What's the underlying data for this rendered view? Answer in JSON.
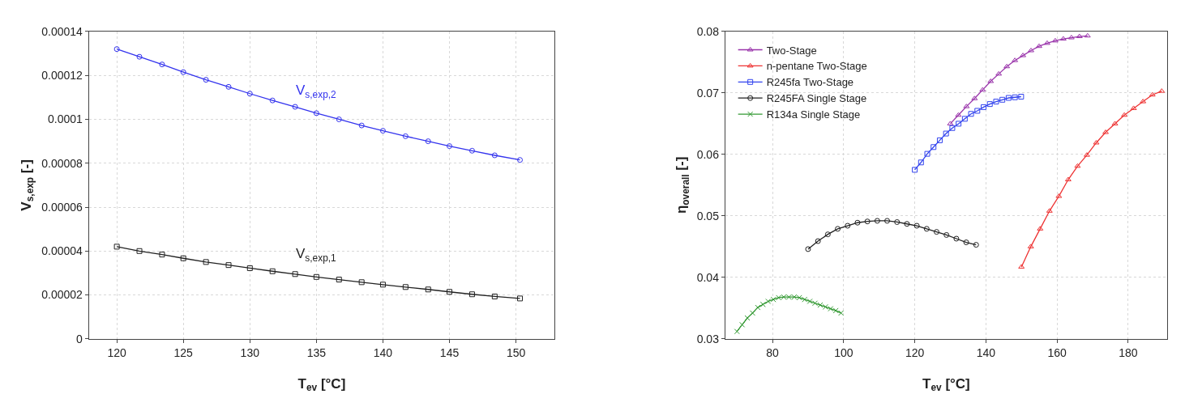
{
  "chart_data": [
    {
      "type": "line",
      "xlabel": "T$_{ev}$ [°C]",
      "ylabel": "V$_{s,exp}$ [-]",
      "xlim": [
        117.9,
        152.9
      ],
      "xticks": [
        120,
        125,
        130,
        135,
        140,
        145,
        150
      ],
      "ylim": [
        0,
        0.00014
      ],
      "yticks": [
        0,
        {
          "value": 2e-05,
          "label": "0.00002"
        },
        {
          "value": 4e-05,
          "label": "0.00004"
        },
        {
          "value": 6e-05,
          "label": "0.00006"
        },
        {
          "value": 8e-05,
          "label": "0.00008"
        },
        {
          "value": 0.0001,
          "label": "0.0001"
        },
        {
          "value": 0.00012,
          "label": "0.00012"
        },
        {
          "value": 0.00014,
          "label": "0.00014"
        }
      ],
      "grid": true,
      "legend": false,
      "x": [
        120,
        121.7,
        123.4,
        125,
        126.7,
        128.4,
        130,
        131.7,
        133.4,
        135,
        136.7,
        138.4,
        140,
        141.7,
        143.4,
        145,
        146.7,
        148.4,
        150.3
      ],
      "series": [
        {
          "name": "V$_{s,exp,2}$",
          "color": "#3333ee",
          "marker": "circle",
          "values": [
            0.000132,
            0.0001285,
            0.000125,
            0.0001215,
            0.000118,
            0.0001148,
            0.0001117,
            0.0001086,
            0.0001057,
            0.0001028,
            0.0001,
            9.72e-05,
            9.48e-05,
            9.23e-05,
            9e-05,
            8.78e-05,
            8.57e-05,
            8.36e-05,
            8.15e-05
          ]
        },
        {
          "name": "V$_{s,exp,1}$",
          "color": "#222222",
          "marker": "square",
          "values": [
            4.2e-05,
            4e-05,
            3.84e-05,
            3.67e-05,
            3.5e-05,
            3.36e-05,
            3.22e-05,
            3.08e-05,
            2.95e-05,
            2.82e-05,
            2.7e-05,
            2.58e-05,
            2.47e-05,
            2.36e-05,
            2.25e-05,
            2.14e-05,
            2.03e-05,
            1.93e-05,
            1.84e-05
          ]
        }
      ]
    },
    {
      "type": "line",
      "xlabel": "T$_{ev}$ [°C]",
      "ylabel": "η$_{overall}$ [-]",
      "xlim": [
        66.7,
        191
      ],
      "xticks": [
        80,
        100,
        120,
        140,
        160,
        180
      ],
      "ylim": [
        0.03,
        0.08
      ],
      "yticks": [
        0.03,
        0.04,
        0.05,
        0.06,
        0.07,
        0.08
      ],
      "grid": true,
      "legend": "top left",
      "series": [
        {
          "name": "Two-Stage",
          "color": "#9933aa",
          "marker": "triangle",
          "x": [
            130,
            132.27,
            134.54,
            136.81,
            139.08,
            141.35,
            143.62,
            145.89,
            148.16,
            150.43,
            152.7,
            154.97,
            157.24,
            159.51,
            161.78,
            164.05,
            166.32,
            168.59
          ],
          "values": [
            0.065,
            0.0664,
            0.0678,
            0.0691,
            0.0705,
            0.0719,
            0.0731,
            0.0743,
            0.0753,
            0.0761,
            0.0769,
            0.0776,
            0.0781,
            0.0785,
            0.0788,
            0.079,
            0.0792,
            0.0793
          ]
        },
        {
          "name": "n-pentane Two-Stage",
          "color": "#ee3333",
          "marker": "triangle",
          "x": [
            150,
            152.63,
            155.26,
            157.89,
            160.52,
            163.15,
            165.78,
            168.41,
            171.04,
            173.67,
            176.3,
            178.93,
            181.56,
            184.19,
            186.82,
            189.45
          ],
          "values": [
            0.0417,
            0.045,
            0.0479,
            0.0508,
            0.0532,
            0.0559,
            0.0581,
            0.0599,
            0.0619,
            0.0636,
            0.065,
            0.0664,
            0.0675,
            0.0686,
            0.0697,
            0.0703
          ]
        },
        {
          "name": "R245fa Two-Stage",
          "color": "#3344ee",
          "marker": "square",
          "x": [
            120,
            121.76,
            123.52,
            125.28,
            127.04,
            128.8,
            130.56,
            132.32,
            134.08,
            135.84,
            137.6,
            139.36,
            141.12,
            142.88,
            144.64,
            146.4,
            148.16,
            149.92
          ],
          "values": [
            0.0575,
            0.0587,
            0.0601,
            0.0612,
            0.0623,
            0.0634,
            0.0643,
            0.065,
            0.0658,
            0.0666,
            0.0671,
            0.0677,
            0.0682,
            0.0686,
            0.0689,
            0.0692,
            0.0693,
            0.0694
          ]
        },
        {
          "name": "R245FA Single Stage",
          "color": "#222222",
          "marker": "circle",
          "x": [
            90,
            92.78,
            95.56,
            98.34,
            101.12,
            103.9,
            106.68,
            109.46,
            112.24,
            115.02,
            117.8,
            120.58,
            123.36,
            126.14,
            128.92,
            131.7,
            134.48,
            137.26
          ],
          "values": [
            0.0446,
            0.0459,
            0.047,
            0.0479,
            0.0484,
            0.0489,
            0.0491,
            0.0492,
            0.0492,
            0.049,
            0.0487,
            0.0484,
            0.0479,
            0.0474,
            0.0469,
            0.0463,
            0.0457,
            0.0453
          ]
        },
        {
          "name": "R134a Single Stage",
          "color": "#339933",
          "marker": "cross",
          "x": [
            70,
            71.46,
            72.93,
            74.39,
            75.85,
            77.32,
            78.78,
            80.24,
            81.71,
            83.17,
            84.63,
            86.1,
            87.56,
            89.02,
            90.49,
            91.95,
            93.41,
            94.88,
            96.34,
            97.8,
            99.27
          ],
          "values": [
            0.0312,
            0.0323,
            0.0334,
            0.0342,
            0.0351,
            0.0356,
            0.0361,
            0.0364,
            0.0367,
            0.0368,
            0.0368,
            0.0368,
            0.0367,
            0.0364,
            0.0361,
            0.0358,
            0.0355,
            0.0352,
            0.0349,
            0.0346,
            0.0342
          ]
        }
      ]
    }
  ]
}
